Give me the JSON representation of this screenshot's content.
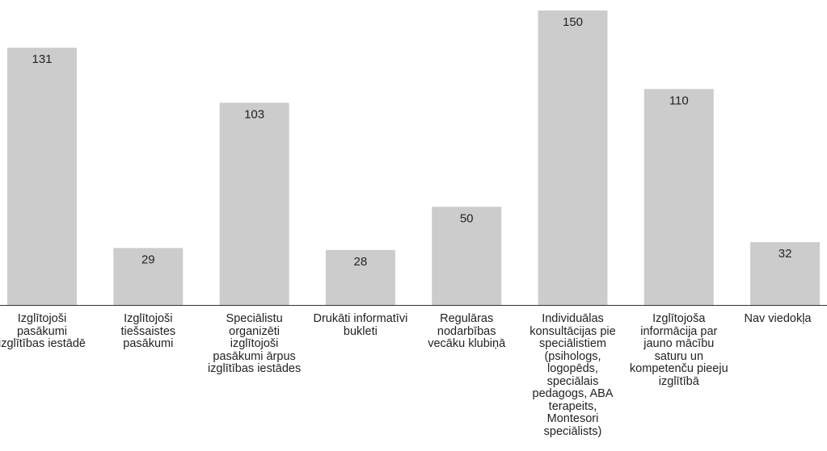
{
  "chart_data": {
    "type": "bar",
    "categories": [
      "Izglītojoši pasākumi izglītības iestādē",
      "Izglītojoši tiešsaistes pasākumi",
      "Speciālistu organizēti izglītojoši pasākumi ārpus izglītības iestādes",
      "Drukāti informatīvi bukleti",
      "Regulāras nodarbības vecāku klubiņā",
      "Individuālas konsultācijas pie speciālistiem (psihologs, logopēds, speciālais pedagogs, ABA terapeits, Montesori speciālists)",
      "Izglītojoša informācija par jauno mācību saturu un kompetenču pieeju izglītībā",
      "Nav viedokļa"
    ],
    "values": [
      131,
      29,
      103,
      28,
      50,
      150,
      110,
      32
    ],
    "title": "",
    "xlabel": "",
    "ylabel": "",
    "ylim": [
      0,
      150
    ],
    "grid": false,
    "legend": "none",
    "bar_color": "#cccccc"
  }
}
